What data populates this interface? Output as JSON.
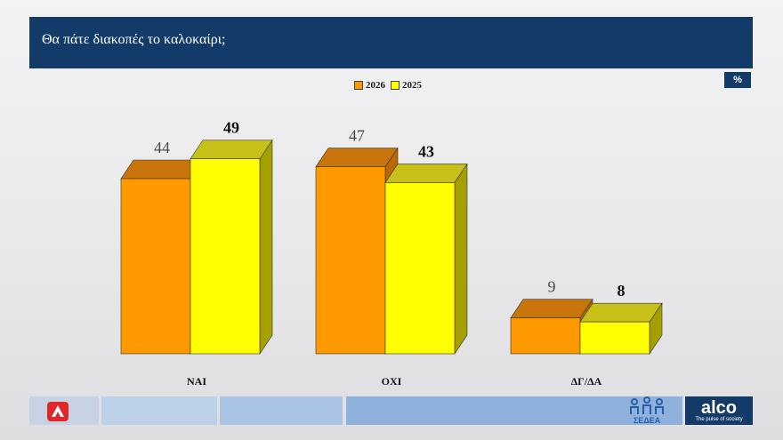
{
  "header": {
    "title": "Θα πάτε διακοπές το καλοκαίρι;"
  },
  "unit": "%",
  "colors": {
    "header_bg": "#133b6a",
    "series_2026": "#ff9900",
    "series_2025": "#ffff00"
  },
  "chart_data": {
    "type": "bar",
    "categories": [
      "ΝΑΙ",
      "ΟΧΙ",
      "ΔΓ/ΔΑ"
    ],
    "series": [
      {
        "name": "2026",
        "values": [
          44,
          47,
          9
        ]
      },
      {
        "name": "2025",
        "values": [
          49,
          43,
          8
        ]
      }
    ],
    "ylim": [
      0,
      55
    ],
    "legend_position": "top-center",
    "grid": false
  },
  "footer": {
    "left_logo_icon": "alpha-news-logo-icon",
    "sedea_label": "ΣΕΔΕΑ",
    "alco_name": "alco",
    "alco_tagline": "The pulse of society"
  }
}
